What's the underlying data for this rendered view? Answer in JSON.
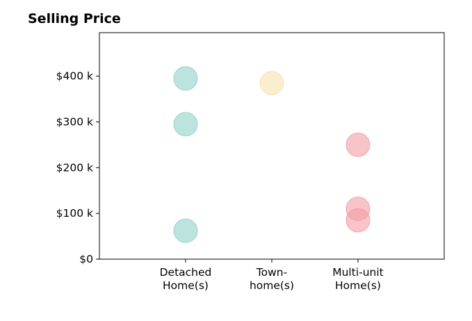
{
  "chart_data": {
    "type": "scatter",
    "title": "Selling Price",
    "xlabel": "",
    "ylabel": "",
    "categories": [
      [
        "Detached",
        "Home(s)"
      ],
      [
        "Town-",
        "home(s)"
      ],
      [
        "Multi-unit",
        "Home(s)"
      ]
    ],
    "yticks": [
      {
        "value": 0,
        "label": "$0"
      },
      {
        "value": 100,
        "label": "$100 k"
      },
      {
        "value": 200,
        "label": "$200 k"
      },
      {
        "value": 300,
        "label": "$300 k"
      },
      {
        "value": 400,
        "label": "$400 k"
      }
    ],
    "ylim": [
      0,
      495
    ],
    "xlim": [
      -1,
      3
    ],
    "grid": false,
    "series": [
      {
        "category_index": 0,
        "color": "#8fd1c6",
        "values": [
          395,
          295,
          62
        ]
      },
      {
        "category_index": 1,
        "color": "#f6e2b1",
        "values": [
          385
        ]
      },
      {
        "category_index": 2,
        "color": "#f29ea3",
        "values": [
          250,
          110,
          85
        ]
      }
    ]
  }
}
